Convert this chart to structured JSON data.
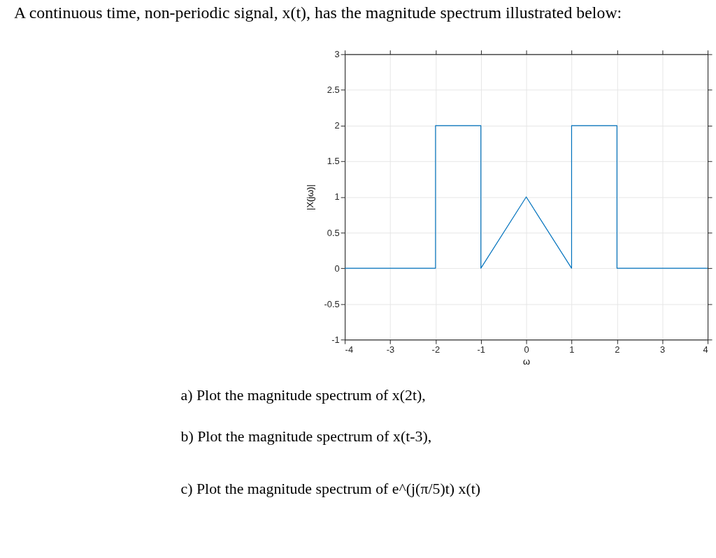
{
  "chart_data": {
    "type": "line",
    "title": "A continuous time, non-periodic signal, x(t), has the magnitude spectrum illustrated below:",
    "xlabel": "ω",
    "ylabel": "|X(jω)|",
    "annotations": [
      "a)  Plot the magnitude spectrum of x(2t),",
      "b)  Plot the magnitude spectrum of x(t-3),",
      "c)  Plot the magnitude spectrum of e^(j(π/5)t) x(t)"
    ],
    "series": [
      {
        "color": "#0072bd",
        "x": [
          -4,
          -2,
          -2,
          -1,
          -1,
          0,
          1,
          1,
          2,
          2,
          4
        ],
        "values": [
          0,
          0,
          2,
          2,
          0,
          1,
          0,
          2,
          2,
          0,
          0
        ]
      }
    ],
    "xlim": [
      -4,
      4
    ],
    "ylim": [
      -1,
      3
    ],
    "xticks": [
      -4,
      -3,
      -2,
      -1,
      0,
      1,
      2,
      3,
      4
    ],
    "yticks": [
      -1,
      -0.5,
      0,
      0.5,
      1,
      1.5,
      2,
      2.5,
      3
    ],
    "grid": true
  }
}
